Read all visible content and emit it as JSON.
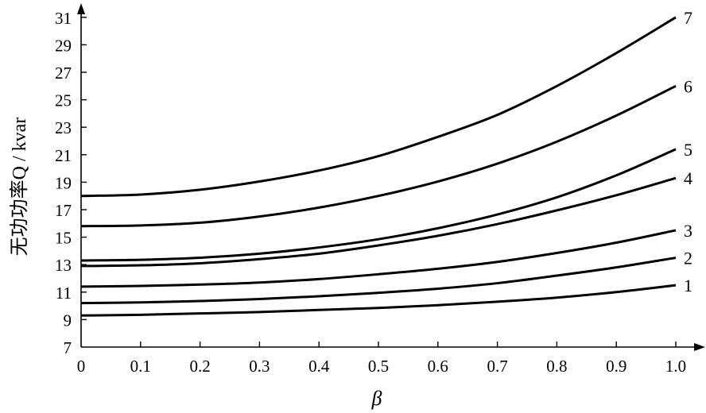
{
  "chart_data": {
    "type": "line",
    "xlabel": "β",
    "ylabel": "无功功率Q / kvar",
    "xlim": [
      0,
      1.0
    ],
    "ylim": [
      7,
      32
    ],
    "x_ticks": [
      "0",
      "0.1",
      "0.2",
      "0.3",
      "0.4",
      "0.5",
      "0.6",
      "0.7",
      "0.8",
      "0.9",
      "1.0"
    ],
    "y_ticks": [
      "7",
      "9",
      "11",
      "13",
      "15",
      "17",
      "19",
      "21",
      "23",
      "25",
      "27",
      "29",
      "31"
    ],
    "x": [
      0,
      0.1,
      0.2,
      0.3,
      0.4,
      0.5,
      0.6,
      0.7,
      0.8,
      0.9,
      1.0
    ],
    "grid": false,
    "series": [
      {
        "name": "1",
        "values": [
          9.3,
          9.35,
          9.45,
          9.55,
          9.7,
          9.85,
          10.05,
          10.3,
          10.6,
          11.0,
          11.5
        ]
      },
      {
        "name": "2",
        "values": [
          10.2,
          10.25,
          10.35,
          10.5,
          10.7,
          10.95,
          11.25,
          11.65,
          12.2,
          12.8,
          13.5
        ]
      },
      {
        "name": "3",
        "values": [
          11.4,
          11.45,
          11.55,
          11.7,
          11.95,
          12.3,
          12.7,
          13.2,
          13.85,
          14.6,
          15.5
        ]
      },
      {
        "name": "4",
        "values": [
          12.9,
          12.95,
          13.1,
          13.4,
          13.8,
          14.4,
          15.1,
          15.95,
          16.95,
          18.05,
          19.3
        ]
      },
      {
        "name": "5",
        "values": [
          13.3,
          13.35,
          13.5,
          13.8,
          14.25,
          14.85,
          15.65,
          16.65,
          17.9,
          19.5,
          21.4
        ]
      },
      {
        "name": "6",
        "values": [
          15.8,
          15.85,
          16.05,
          16.5,
          17.15,
          18.0,
          19.05,
          20.35,
          21.95,
          23.85,
          26.0
        ]
      },
      {
        "name": "7",
        "values": [
          18.0,
          18.1,
          18.45,
          19.05,
          19.85,
          20.9,
          22.3,
          23.9,
          26.0,
          28.4,
          31.0
        ]
      }
    ]
  }
}
